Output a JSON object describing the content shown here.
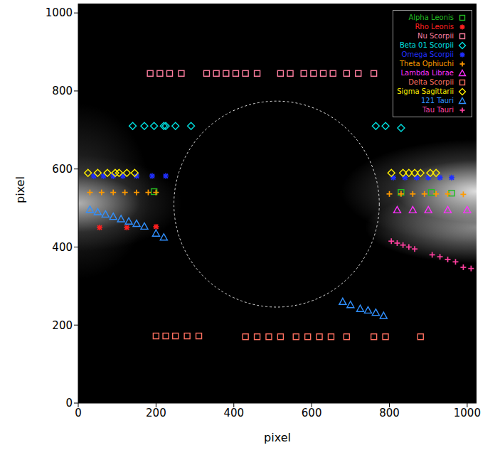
{
  "chart_data": {
    "type": "scatter",
    "x_label": "pixel",
    "y_label": "pixel",
    "xlim": [
      0,
      1024
    ],
    "ylim": [
      0,
      1024
    ],
    "xticks": [
      0,
      200,
      400,
      600,
      800,
      1000
    ],
    "yticks": [
      0,
      200,
      400,
      600,
      800,
      1000
    ],
    "legend": "upper right",
    "circle": {
      "x": 510,
      "y": 510,
      "r": 264
    },
    "series": [
      {
        "name": "Alpha Leonis",
        "color": "#22bb22",
        "marker": "square",
        "x": [
          195,
          830,
          908,
          960
        ],
        "values": [
          542,
          540,
          540,
          538
        ]
      },
      {
        "name": "Rho Leonis",
        "color": "#ff2020",
        "marker": "asterisk",
        "x": [
          55,
          125,
          200
        ],
        "values": [
          450,
          450,
          452
        ]
      },
      {
        "name": "Nu Scorpii",
        "color": "#ff7fa0",
        "marker": "square",
        "x": [
          185,
          210,
          235,
          265,
          330,
          355,
          380,
          405,
          430,
          460,
          520,
          545,
          580,
          605,
          630,
          655,
          690,
          720,
          760
        ],
        "values": [
          845,
          845,
          845,
          845,
          845,
          845,
          845,
          845,
          845,
          845,
          845,
          845,
          845,
          845,
          845,
          845,
          845,
          845,
          845
        ]
      },
      {
        "name": "Beta 01 Scorpii",
        "color": "#00e0e0",
        "marker": "diamond",
        "x": [
          140,
          170,
          195,
          220,
          225,
          250,
          290,
          765,
          790,
          830
        ],
        "values": [
          710,
          710,
          710,
          710,
          710,
          710,
          710,
          710,
          710,
          705
        ]
      },
      {
        "name": "Omega Scorpii",
        "color": "#2030ff",
        "marker": "asterisk",
        "x": [
          40,
          65,
          90,
          115,
          150,
          190,
          225,
          810,
          840,
          870,
          900,
          930,
          960
        ],
        "values": [
          582,
          582,
          582,
          582,
          582,
          582,
          582,
          578,
          578,
          578,
          578,
          578,
          578
        ]
      },
      {
        "name": "Theta Ophiuchi",
        "color": "#ff9a00",
        "marker": "plus",
        "x": [
          30,
          60,
          90,
          120,
          150,
          180,
          200,
          800,
          830,
          860,
          890,
          920,
          950,
          990
        ],
        "values": [
          540,
          540,
          540,
          540,
          540,
          540,
          540,
          536,
          536,
          536,
          536,
          536,
          536,
          535
        ]
      },
      {
        "name": "Lambda Librae",
        "color": "#ff30ff",
        "marker": "triangle",
        "x": [
          820,
          860,
          900,
          950,
          1000
        ],
        "values": [
          495,
          495,
          495,
          495,
          495
        ]
      },
      {
        "name": "Delta Scorpii",
        "color": "#ff7060",
        "marker": "square",
        "x": [
          200,
          225,
          250,
          280,
          310,
          430,
          460,
          490,
          520,
          560,
          590,
          620,
          650,
          690,
          760,
          790,
          880
        ],
        "values": [
          172,
          172,
          172,
          172,
          172,
          170,
          170,
          170,
          170,
          170,
          170,
          170,
          170,
          170,
          170,
          170,
          170
        ]
      },
      {
        "name": "Sigma Sagittarii",
        "color": "#ffee00",
        "marker": "diamond",
        "x": [
          25,
          50,
          75,
          95,
          105,
          125,
          145,
          805,
          835,
          850,
          865,
          880,
          905,
          920
        ],
        "values": [
          590,
          590,
          590,
          590,
          590,
          590,
          590,
          590,
          590,
          590,
          590,
          590,
          590,
          590
        ]
      },
      {
        "name": "121 Tauri",
        "color": "#3090ff",
        "marker": "triangle",
        "x": [
          30,
          50,
          70,
          90,
          110,
          130,
          150,
          170,
          200,
          220,
          680,
          700,
          725,
          745,
          765,
          785
        ],
        "values": [
          496,
          490,
          484,
          478,
          472,
          466,
          460,
          453,
          435,
          425,
          260,
          252,
          242,
          238,
          232,
          224
        ]
      },
      {
        "name": "Tau Tauri",
        "color": "#ff40a0",
        "marker": "plus",
        "x": [
          805,
          820,
          835,
          850,
          865,
          910,
          930,
          950,
          970,
          990,
          1010
        ],
        "values": [
          415,
          410,
          405,
          400,
          395,
          380,
          375,
          368,
          362,
          348,
          345
        ]
      }
    ]
  }
}
